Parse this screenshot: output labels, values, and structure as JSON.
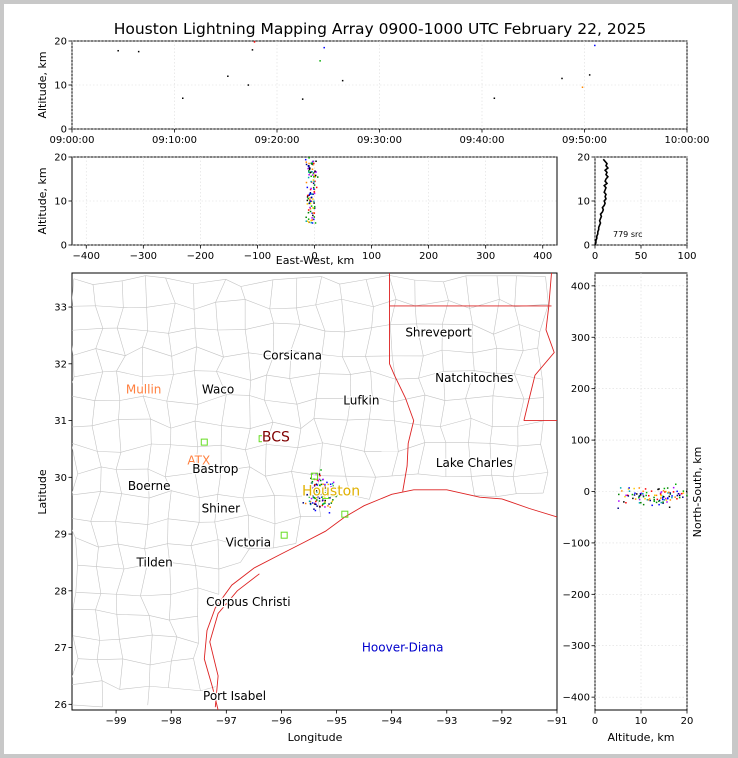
{
  "title": "Houston Lightning Mapping Array 0900-1000 UTC February 22, 2025",
  "chart_data": [
    {
      "panel": "altitude-time",
      "type": "scatter",
      "ylabel": "Altitude, km",
      "xticks": [
        "09:00:00",
        "09:10:00",
        "09:20:00",
        "09:30:00",
        "09:40:00",
        "09:50:00",
        "10:00:00"
      ],
      "xlim_minutes": [
        0,
        60
      ],
      "ylim": [
        0,
        20
      ],
      "yticks": [
        0,
        10,
        20
      ],
      "points": [
        {
          "t": 4.5,
          "z": 17.8,
          "c": "#000000"
        },
        {
          "t": 6.5,
          "z": 17.6,
          "c": "#000000"
        },
        {
          "t": 10.8,
          "z": 7.0,
          "c": "#000000"
        },
        {
          "t": 15.2,
          "z": 12.0,
          "c": "#000000"
        },
        {
          "t": 17.2,
          "z": 10.0,
          "c": "#000000"
        },
        {
          "t": 17.6,
          "z": 18.0,
          "c": "#000000"
        },
        {
          "t": 17.8,
          "z": 19.8,
          "c": "#ff0000"
        },
        {
          "t": 22.5,
          "z": 6.8,
          "c": "#000000"
        },
        {
          "t": 24.2,
          "z": 15.5,
          "c": "#00aa00"
        },
        {
          "t": 24.6,
          "z": 18.5,
          "c": "#0000ff"
        },
        {
          "t": 26.4,
          "z": 11.0,
          "c": "#000000"
        },
        {
          "t": 41.2,
          "z": 7.0,
          "c": "#000000"
        },
        {
          "t": 47.8,
          "z": 11.5,
          "c": "#000000"
        },
        {
          "t": 49.8,
          "z": 9.5,
          "c": "#ff8800"
        },
        {
          "t": 50.5,
          "z": 12.3,
          "c": "#000000"
        },
        {
          "t": 51.0,
          "z": 19.0,
          "c": "#0000ff"
        }
      ]
    },
    {
      "panel": "altitude-eastwest",
      "type": "scatter",
      "xlabel": "East-West, km",
      "ylabel": "Altitude, km",
      "xlim": [
        -425,
        425
      ],
      "xticks": [
        -400,
        -300,
        -200,
        -100,
        0,
        100,
        200,
        300,
        400
      ],
      "ylim": [
        0,
        20
      ],
      "yticks": [
        0,
        10,
        20
      ]
    },
    {
      "panel": "altitude-histogram",
      "type": "line",
      "xlim": [
        0,
        100
      ],
      "xticks": [
        0,
        50,
        100
      ],
      "ylim": [
        0,
        20
      ],
      "yticks": [
        0,
        10,
        20
      ],
      "annotation": "779 src",
      "counts": [
        {
          "z": 0.0,
          "n": 0
        },
        {
          "z": 0.5,
          "n": 1
        },
        {
          "z": 1.0,
          "n": 1
        },
        {
          "z": 1.5,
          "n": 2
        },
        {
          "z": 2.0,
          "n": 2
        },
        {
          "z": 2.5,
          "n": 3
        },
        {
          "z": 3.0,
          "n": 3
        },
        {
          "z": 3.5,
          "n": 4
        },
        {
          "z": 4.0,
          "n": 4
        },
        {
          "z": 4.5,
          "n": 5
        },
        {
          "z": 5.0,
          "n": 6
        },
        {
          "z": 5.5,
          "n": 5
        },
        {
          "z": 6.0,
          "n": 6
        },
        {
          "z": 6.5,
          "n": 7
        },
        {
          "z": 7.0,
          "n": 6
        },
        {
          "z": 7.5,
          "n": 8
        },
        {
          "z": 8.0,
          "n": 9
        },
        {
          "z": 8.5,
          "n": 8
        },
        {
          "z": 9.0,
          "n": 10
        },
        {
          "z": 9.5,
          "n": 11
        },
        {
          "z": 10.0,
          "n": 10
        },
        {
          "z": 10.5,
          "n": 12
        },
        {
          "z": 11.0,
          "n": 11
        },
        {
          "z": 11.5,
          "n": 12
        },
        {
          "z": 12.0,
          "n": 10
        },
        {
          "z": 12.5,
          "n": 11
        },
        {
          "z": 13.0,
          "n": 12
        },
        {
          "z": 13.5,
          "n": 10
        },
        {
          "z": 14.0,
          "n": 13
        },
        {
          "z": 14.5,
          "n": 11
        },
        {
          "z": 15.0,
          "n": 12
        },
        {
          "z": 15.5,
          "n": 14
        },
        {
          "z": 16.0,
          "n": 12
        },
        {
          "z": 16.5,
          "n": 13
        },
        {
          "z": 17.0,
          "n": 11
        },
        {
          "z": 17.5,
          "n": 14
        },
        {
          "z": 18.0,
          "n": 12
        },
        {
          "z": 18.5,
          "n": 13
        },
        {
          "z": 19.0,
          "n": 11
        },
        {
          "z": 19.5,
          "n": 9
        }
      ]
    },
    {
      "panel": "plan-view-map",
      "type": "scatter",
      "xlabel": "Longitude",
      "ylabel": "Latitude",
      "xlim": [
        -99.8,
        -91.0
      ],
      "ylim": [
        25.9,
        33.6
      ],
      "xticks": [
        -99,
        -98,
        -97,
        -96,
        -95,
        -94,
        -93,
        -92,
        -91
      ],
      "yticks": [
        26,
        27,
        28,
        29,
        30,
        31,
        32,
        33
      ],
      "cities": [
        {
          "name": "Shreveport",
          "lon": -93.15,
          "lat": 32.55,
          "c": "#000000"
        },
        {
          "name": "Corsicana",
          "lon": -95.8,
          "lat": 32.15,
          "c": "#000000"
        },
        {
          "name": "Natchitoches",
          "lon": -92.5,
          "lat": 31.75,
          "c": "#000000"
        },
        {
          "name": "Mullin",
          "lon": -98.5,
          "lat": 31.55,
          "c": "#ff8040"
        },
        {
          "name": "Waco",
          "lon": -97.15,
          "lat": 31.55,
          "c": "#000000"
        },
        {
          "name": "Lufkin",
          "lon": -94.55,
          "lat": 31.35,
          "c": "#000000"
        },
        {
          "name": "BCS",
          "lon": -96.1,
          "lat": 30.7,
          "c": "#800000"
        },
        {
          "name": "ATX",
          "lon": -97.5,
          "lat": 30.3,
          "c": "#ff8040"
        },
        {
          "name": "Bastrop",
          "lon": -97.2,
          "lat": 30.15,
          "c": "#000000"
        },
        {
          "name": "Lake Charles",
          "lon": -92.5,
          "lat": 30.25,
          "c": "#000000"
        },
        {
          "name": "Boerne",
          "lon": -98.4,
          "lat": 29.85,
          "c": "#000000"
        },
        {
          "name": "Houston",
          "lon": -95.1,
          "lat": 29.75,
          "c": "#e0b000"
        },
        {
          "name": "Shiner",
          "lon": -97.1,
          "lat": 29.45,
          "c": "#000000"
        },
        {
          "name": "Victoria",
          "lon": -96.6,
          "lat": 28.85,
          "c": "#000000"
        },
        {
          "name": "Tilden",
          "lon": -98.3,
          "lat": 28.5,
          "c": "#000000"
        },
        {
          "name": "Corpus Christi",
          "lon": -96.6,
          "lat": 27.8,
          "c": "#000000"
        },
        {
          "name": "Hoover-Diana",
          "lon": -93.8,
          "lat": 27.0,
          "c": "#0000cc"
        },
        {
          "name": "Port Isabel",
          "lon": -96.85,
          "lat": 26.15,
          "c": "#000000"
        }
      ],
      "stations": [
        {
          "lon": -97.4,
          "lat": 30.62
        },
        {
          "lon": -96.35,
          "lat": 30.68
        },
        {
          "lon": -95.4,
          "lat": 30.02
        },
        {
          "lon": -95.2,
          "lat": 29.68
        },
        {
          "lon": -95.05,
          "lat": 29.72
        },
        {
          "lon": -94.85,
          "lat": 29.35
        },
        {
          "lon": -95.95,
          "lat": 28.98
        }
      ]
    },
    {
      "panel": "northsouth-altitude",
      "type": "scatter",
      "xlabel": "Altitude, km",
      "ylabel": "North-South, km",
      "xlim": [
        0,
        20
      ],
      "xticks": [
        0,
        10,
        20
      ],
      "ylim": [
        -425,
        425
      ],
      "yticks": [
        -400,
        -300,
        -200,
        -100,
        0,
        100,
        200,
        300,
        400
      ]
    }
  ]
}
